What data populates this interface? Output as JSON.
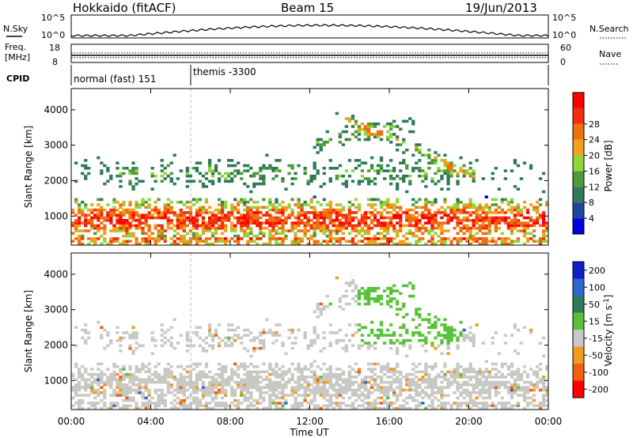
{
  "header": {
    "site": "Hokkaido (fitACF)",
    "beam": "Beam 15",
    "date": "19/Jun/2013"
  },
  "strip1": {
    "left_label": "N.Sky",
    "ticks_left": [
      "10^5",
      "10^0"
    ],
    "ticks_right": [
      "10^5",
      "10^0"
    ],
    "right_label": "N.Search"
  },
  "strip2": {
    "left_label_1": "Freq.",
    "left_label_2": "[MHz]",
    "ticks_left": [
      "18",
      "8"
    ],
    "ticks_right": [
      "60",
      "0"
    ],
    "right_label": "Nave"
  },
  "cpid": {
    "label": "CPID",
    "seg1": "normal (fast) 151",
    "seg2": "themis -3300"
  },
  "colors": {
    "power_scale": [
      "#0000e0",
      "#1e46a0",
      "#2f7a58",
      "#4f9a3a",
      "#8fd63a",
      "#f5a01a",
      "#f07010",
      "#f23010",
      "#ff0000"
    ],
    "velocity_scale": [
      "#1020c8",
      "#2a6ad0",
      "#2f7a58",
      "#5ac23a",
      "#c8c8c4",
      "#f09a20",
      "#f06010",
      "#ff0000"
    ]
  },
  "chart_data": [
    {
      "type": "heatmap",
      "title": "Power",
      "xlabel": "Time UT",
      "ylabel": "Slant Range [km]",
      "x_ticks": [
        "00:00",
        "04:00",
        "08:00",
        "12:00",
        "16:00",
        "20:00",
        "00:00"
      ],
      "y_ticks": [
        "1000",
        "2000",
        "3000",
        "4000"
      ],
      "ylim": [
        180,
        4600
      ],
      "colorbar_label": "Power [dB]",
      "colorbar_ticks": [
        "4",
        "8",
        "12",
        "16",
        "20",
        "24",
        "28"
      ]
    },
    {
      "type": "heatmap",
      "title": "Velocity",
      "xlabel": "Time UT",
      "ylabel": "Slant Range [km]",
      "x_ticks": [
        "00:00",
        "04:00",
        "08:00",
        "12:00",
        "16:00",
        "20:00",
        "00:00"
      ],
      "y_ticks": [
        "1000",
        "2000",
        "3000",
        "4000"
      ],
      "ylim": [
        180,
        4600
      ],
      "colorbar_label": "Velocity [m s^-1]",
      "colorbar_ticks": [
        "200",
        "100",
        "50",
        "15",
        "-15",
        "-50",
        "-100",
        "-200"
      ]
    }
  ],
  "xaxis_title": "Time UT"
}
